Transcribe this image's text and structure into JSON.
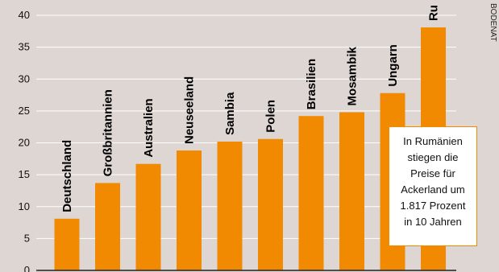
{
  "chart_data": {
    "type": "bar",
    "categories": [
      "Deutschland",
      "Großbritannien",
      "Australien",
      "Neuseeland",
      "Sambia",
      "Polen",
      "Brasilien",
      "Mosambik",
      "Ungarn",
      "Ru"
    ],
    "values": [
      8.1,
      13.7,
      16.7,
      18.8,
      20.2,
      20.6,
      24.2,
      24.8,
      27.8,
      38.1
    ],
    "ylim": [
      0,
      40
    ],
    "yticks": [
      0,
      5,
      10,
      15,
      20,
      25,
      30,
      35,
      40
    ],
    "grid": true,
    "bar_color": "#f28a00",
    "annotation": "In Rumänien\nstiegen die\nPreise für\nAckerland um\n1.817 Prozent\nin 10 Jahren",
    "side_label": "BODENAT"
  }
}
